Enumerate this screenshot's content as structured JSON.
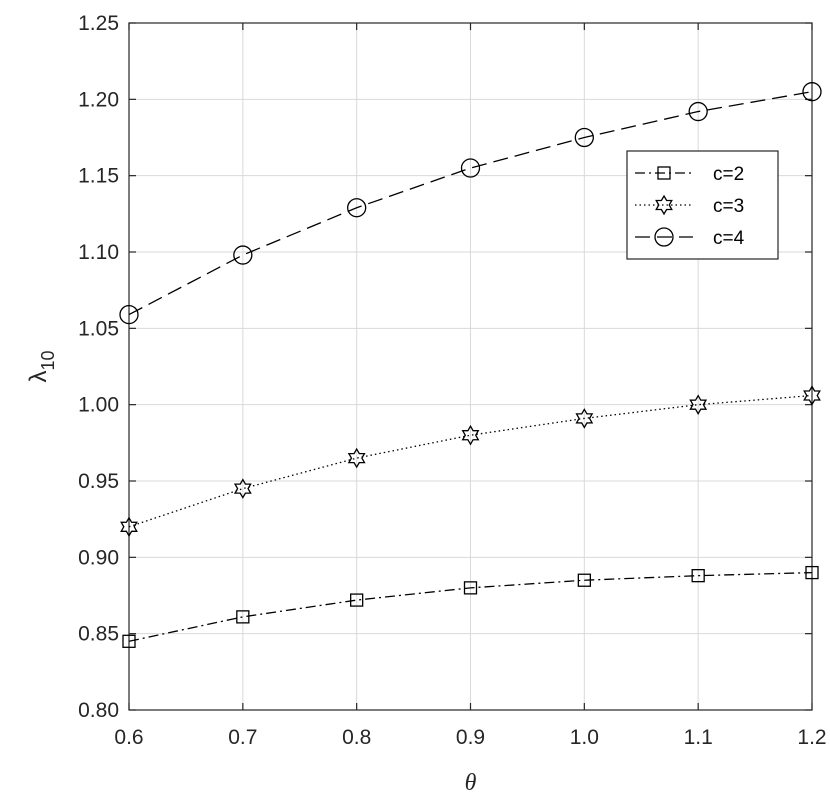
{
  "chart_data": {
    "type": "line",
    "title": "",
    "xlabel": "θ",
    "ylabel": "λ",
    "ylabel_subscript": "10",
    "xlim": [
      0.6,
      1.2
    ],
    "ylim": [
      0.8,
      1.25
    ],
    "x_ticks": [
      "0.6",
      "0.7",
      "0.8",
      "0.9",
      "1.0",
      "1.1",
      "1.2"
    ],
    "y_ticks": [
      "0.80",
      "0.85",
      "0.90",
      "0.95",
      "1.00",
      "1.05",
      "1.10",
      "1.15",
      "1.20",
      "1.25"
    ],
    "grid": true,
    "legend_position": "top-right",
    "x": [
      0.6,
      0.7,
      0.8,
      0.9,
      1.0,
      1.1,
      1.2
    ],
    "series": [
      {
        "name": "c=2",
        "marker": "square",
        "line_style": "dash-dot",
        "values": [
          0.845,
          0.861,
          0.872,
          0.88,
          0.885,
          0.888,
          0.89
        ]
      },
      {
        "name": "c=3",
        "marker": "hexagram",
        "line_style": "dotted",
        "values": [
          0.92,
          0.945,
          0.965,
          0.98,
          0.991,
          1.0,
          1.006
        ]
      },
      {
        "name": "c=4",
        "marker": "circle",
        "line_style": "dashed",
        "values": [
          1.059,
          1.098,
          1.129,
          1.155,
          1.175,
          1.192,
          1.205
        ]
      }
    ]
  }
}
